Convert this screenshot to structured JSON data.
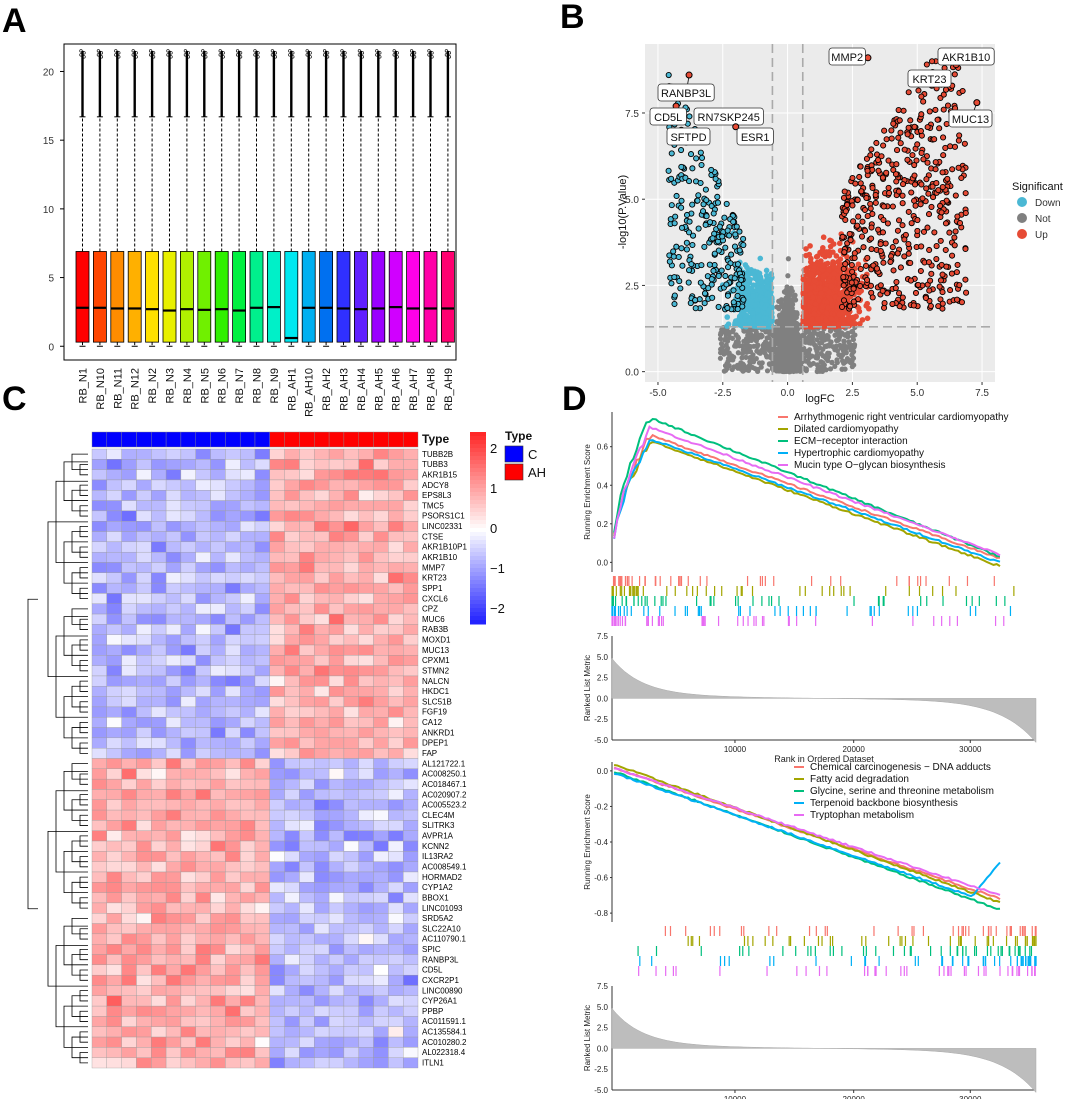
{
  "panels": {
    "A": "A",
    "B": "B",
    "C": "C",
    "D": "D"
  },
  "chart_data": [
    {
      "panel": "A",
      "type": "boxplot",
      "categories": [
        "RB_N1",
        "RB_N10",
        "RB_N11",
        "RB_N12",
        "RB_N2",
        "RB_N3",
        "RB_N4",
        "RB_N5",
        "RB_N6",
        "RB_N7",
        "RB_N8",
        "RB_N9",
        "RB_AH1",
        "RB_AH10",
        "RB_AH2",
        "RB_AH3",
        "RB_AH4",
        "RB_AH5",
        "RB_AH6",
        "RB_AH7",
        "RB_AH8",
        "RB_AH9"
      ],
      "colors": [
        "#FF0000",
        "#FF4500",
        "#FF8C00",
        "#FFB000",
        "#FFE000",
        "#E8F000",
        "#B0F000",
        "#70F000",
        "#30F000",
        "#00F040",
        "#00F08C",
        "#00F0C8",
        "#00E8F0",
        "#00B0F0",
        "#0070F0",
        "#3030FF",
        "#6020FF",
        "#9A00FF",
        "#D000FF",
        "#FF00E8",
        "#FF00A8",
        "#FF0070"
      ],
      "medians": [
        2.8,
        2.8,
        2.75,
        2.75,
        2.7,
        2.6,
        2.7,
        2.65,
        2.7,
        2.6,
        2.8,
        2.85,
        0.6,
        2.8,
        2.8,
        2.75,
        2.7,
        2.75,
        2.85,
        2.75,
        2.75,
        2.75
      ],
      "q1": 0.3,
      "q3": 6.9,
      "whisker_low": 0,
      "whisker_high": 16.7,
      "outlier_max": 21.5,
      "ylim": [
        -1,
        22
      ],
      "yticks": [
        "0",
        "5",
        "10",
        "15",
        "20"
      ]
    },
    {
      "panel": "B",
      "type": "scatter",
      "xlabel": "logFC",
      "ylabel": "-log10(P.Value)",
      "xlim": [
        -5.5,
        8
      ],
      "ylim": [
        -0.3,
        9.5
      ],
      "xticks": [
        "-5.0",
        "-2.5",
        "0.0",
        "2.5",
        "5.0",
        "7.5"
      ],
      "yticks": [
        "0.0",
        "2.5",
        "5.0",
        "7.5"
      ],
      "legend_title": "Significant",
      "legend": [
        {
          "name": "Down",
          "color": "#4BB8D4"
        },
        {
          "name": "Not",
          "color": "#808080"
        },
        {
          "name": "Up",
          "color": "#E64B35"
        }
      ],
      "fc_cutoff": [
        -0.585,
        0.585
      ],
      "p_cutoff": 1.3,
      "labeled_genes": [
        {
          "gene": "RANBP3L",
          "logFC": -3.8,
          "p": 8.6
        },
        {
          "gene": "CD5L",
          "logFC": -4.3,
          "p": 7.7
        },
        {
          "gene": "RN7SKP245",
          "logFC": -2.5,
          "p": 7.3
        },
        {
          "gene": "SFTPD",
          "logFC": -4.1,
          "p": 7.0
        },
        {
          "gene": "ESR1",
          "logFC": -2.0,
          "p": 7.1
        },
        {
          "gene": "MMP2",
          "logFC": 3.1,
          "p": 9.1
        },
        {
          "gene": "AKR1B10",
          "logFC": 6.5,
          "p": 8.9
        },
        {
          "gene": "KRT23",
          "logFC": 5.4,
          "p": 8.5
        },
        {
          "gene": "MUC13",
          "logFC": 7.3,
          "p": 7.8
        }
      ]
    },
    {
      "panel": "C",
      "type": "heatmap",
      "annotation_title": "Type",
      "legend_title": "Type",
      "groups": [
        {
          "name": "C",
          "color": "#0000FF"
        },
        {
          "name": "AH",
          "color": "#FF0000"
        }
      ],
      "n_C": 12,
      "n_AH": 10,
      "scale_ticks": [
        "2",
        "1",
        "0",
        "−1",
        "−2"
      ],
      "genes": [
        "TUBB2B",
        "TUBB3",
        "AKR1B15",
        "ADCY8",
        "EPS8L3",
        "TMC5",
        "PSORS1C1",
        "LINC02331",
        "CTSE",
        "AKR1B10P1",
        "AKR1B10",
        "MMP7",
        "KRT23",
        "SPP1",
        "CXCL6",
        "CPZ",
        "MUC6",
        "RAB3B",
        "MOXD1",
        "MUC13",
        "CPXM1",
        "STMN2",
        "NALCN",
        "HKDC1",
        "SLC51B",
        "FGF19",
        "CA12",
        "ANKRD1",
        "DPEP1",
        "FAP",
        "AL121722.1",
        "AC008250.1",
        "AC018467.1",
        "AC020907.2",
        "AC005523.2",
        "CLEC4M",
        "SLITRK3",
        "AVPR1A",
        "KCNN2",
        "IL13RA2",
        "AC008549.1",
        "HORMAD2",
        "CYP1A2",
        "BBOX1",
        "LINC01093",
        "SRD5A2",
        "SLC22A10",
        "AC110790.1",
        "SPIC",
        "RANBP3L",
        "CD5L",
        "CXCR2P1",
        "LINC00890",
        "CYP26A1",
        "PPBP",
        "AC011591.1",
        "AC135584.1",
        "AC010280.2",
        "AL022318.4",
        "ITLN1"
      ]
    },
    {
      "panel": "D-top",
      "type": "line",
      "ylabel": "Running Enrichment Score",
      "xlabel": "Rank in Ordered Dataset",
      "xticks": [
        "10000",
        "20000",
        "30000"
      ],
      "yticks": [
        "0.0",
        "0.2",
        "0.4",
        "0.6"
      ],
      "metric_label": "Ranked List Metric",
      "metric_ticks": [
        "7.5",
        "5.0",
        "2.5",
        "0.0",
        "-2.5",
        "-5.0"
      ],
      "series": [
        {
          "name": "Arrhythmogenic right ventricular cardiomyopathy",
          "color": "#F8766D",
          "peak": 0.66,
          "end": 0.02
        },
        {
          "name": "Dilated cardiomyopathy",
          "color": "#A3A500",
          "peak": 0.63,
          "end": -0.02
        },
        {
          "name": "ECM−receptor interaction",
          "color": "#00BF7D",
          "peak": 0.75,
          "end": 0.03
        },
        {
          "name": "Hypertrophic cardiomyopathy",
          "color": "#00B0F6",
          "peak": 0.64,
          "end": 0.0
        },
        {
          "name": "Mucin type O−glycan biosynthesis",
          "color": "#E76BF3",
          "peak": 0.7,
          "end": 0.04
        }
      ]
    },
    {
      "panel": "D-bottom",
      "type": "line",
      "ylabel": "Running Enrichment Score",
      "xlabel": "Rank in Ordered Dataset",
      "xticks": [
        "10000",
        "20000",
        "30000"
      ],
      "yticks": [
        "0.0",
        "-0.2",
        "-0.4",
        "-0.6",
        "-0.8"
      ],
      "metric_label": "Ranked List Metric",
      "metric_ticks": [
        "7.5",
        "5.0",
        "2.5",
        "0.0",
        "-2.5",
        "-5.0"
      ],
      "series": [
        {
          "name": "Chemical carcinogenesis − DNA adducts",
          "color": "#F8766D",
          "start": 0.02,
          "min": -0.72
        },
        {
          "name": "Fatty acid degradation",
          "color": "#A3A500",
          "start": 0.04,
          "min": -0.74
        },
        {
          "name": "Glycine, serine and threonine metabolism",
          "color": "#00BF7D",
          "start": 0.0,
          "min": -0.78
        },
        {
          "name": "Terpenoid backbone biosynthesis",
          "color": "#00B0F6",
          "start": -0.01,
          "min": -0.76
        },
        {
          "name": "Tryptophan metabolism",
          "color": "#E76BF3",
          "start": 0.02,
          "min": -0.7
        }
      ]
    }
  ]
}
